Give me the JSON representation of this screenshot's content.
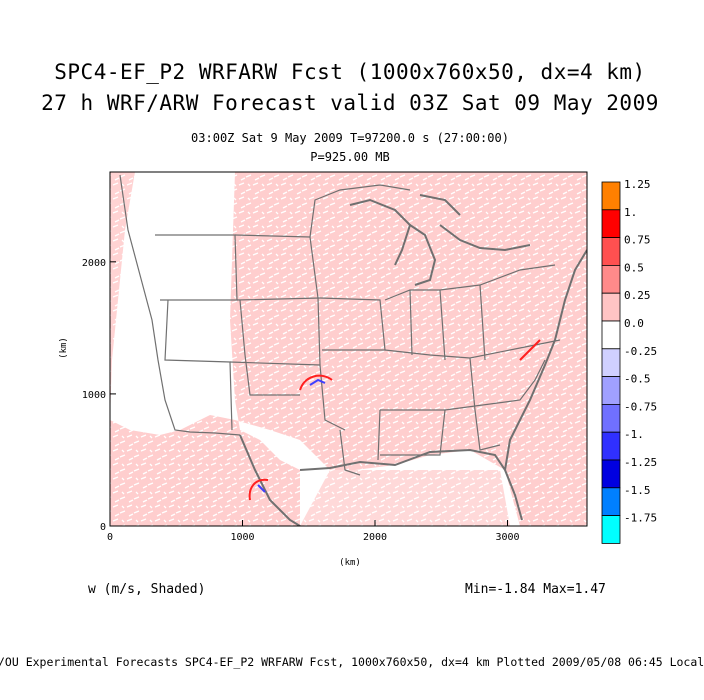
{
  "header": {
    "title_line1": "SPC4-EF_P2 WRFARW Fcst (1000x760x50, dx=4 km)",
    "title_line2": "27 h WRF/ARW Forecast valid 03Z Sat 09 May 2009",
    "subtitle_line1": "03:00Z Sat  9 May 2009    T=97200.0 s (27:00:00)",
    "subtitle_line2": "P=925.00 MB"
  },
  "axes": {
    "x_ticks": [
      "0",
      "1000",
      "2000",
      "3000"
    ],
    "y_ticks": [
      "0",
      "1000",
      "2000"
    ],
    "x_unit": "(km)",
    "y_unit": "(km)",
    "x_range_km": [
      0,
      3600
    ],
    "y_range_km": [
      0,
      2680
    ]
  },
  "colorbar": {
    "labels": [
      "1.25",
      "1.",
      "0.75",
      "0.5",
      "0.25",
      "0.0",
      "-0.25",
      "-0.5",
      "-0.75",
      "-1.",
      "-1.25",
      "-1.5",
      "-1.75"
    ],
    "colors": [
      "#ff8000",
      "#ff0000",
      "#ff5050",
      "#ff8a8a",
      "#ffc4c4",
      "#ffffff",
      "#d0d0ff",
      "#a0a0ff",
      "#7070ff",
      "#3030ff",
      "#0000e0",
      "#0080ff",
      "#00ffff"
    ]
  },
  "chart_data": {
    "type": "heatmap",
    "variable": "w (m/s, Shaded)",
    "min": -1.84,
    "max": 1.47,
    "levels": [
      -1.75,
      -1.5,
      -1.25,
      -1.0,
      -0.75,
      -0.5,
      -0.25,
      0.0,
      0.25,
      0.5,
      0.75,
      1.0,
      1.25
    ]
  },
  "footer": {
    "field_label": "w (m/s, Shaded)",
    "minmax": "Min=-1.84 Max=1.47",
    "bottom_line": "/OU Experimental Forecasts  SPC4-EF_P2 WRFARW Fcst, 1000x760x50, dx=4 km  Plotted 2009/05/08 06:45 Local"
  }
}
